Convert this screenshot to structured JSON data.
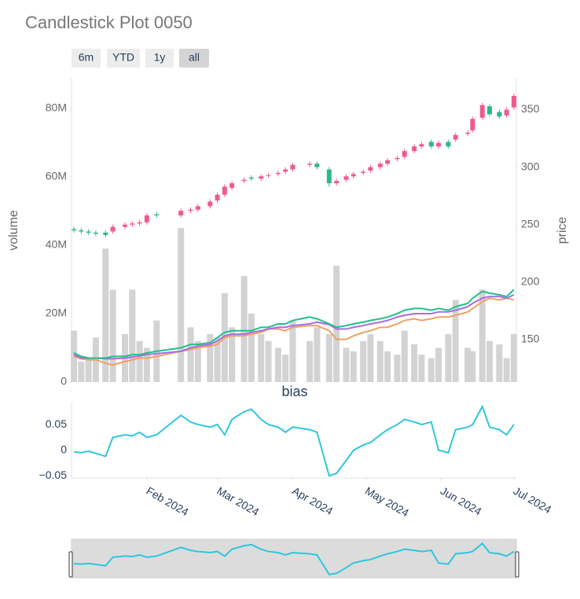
{
  "buttons": [
    "6m",
    "YTD",
    "1y",
    "all"
  ],
  "active_button": 3,
  "chart_data": [
    {
      "type": "candlestick",
      "title": "Candlestick Plot 0050",
      "xlim": [
        "2024-01-01",
        "2024-07-02"
      ],
      "x": [
        "2024-01-02",
        "2024-01-05",
        "2024-01-08",
        "2024-01-11",
        "2024-01-15",
        "2024-01-18",
        "2024-01-23",
        "2024-01-26",
        "2024-01-29",
        "2024-02-01",
        "2024-02-05",
        "2024-02-15",
        "2024-02-19",
        "2024-02-22",
        "2024-02-27",
        "2024-03-01",
        "2024-03-04",
        "2024-03-07",
        "2024-03-12",
        "2024-03-15",
        "2024-03-19",
        "2024-03-22",
        "2024-03-26",
        "2024-03-29",
        "2024-04-01",
        "2024-04-08",
        "2024-04-11",
        "2024-04-16",
        "2024-04-19",
        "2024-04-23",
        "2024-04-26",
        "2024-04-30",
        "2024-05-03",
        "2024-05-07",
        "2024-05-10",
        "2024-05-14",
        "2024-05-17",
        "2024-05-21",
        "2024-05-24",
        "2024-05-28",
        "2024-05-31",
        "2024-06-04",
        "2024-06-07",
        "2024-06-12",
        "2024-06-14",
        "2024-06-18",
        "2024-06-21",
        "2024-06-25",
        "2024-06-28",
        "2024-07-01"
      ],
      "open": [
        246,
        245,
        244,
        243,
        243,
        244,
        248,
        250,
        251,
        252,
        259,
        258,
        262,
        263,
        266,
        271,
        276,
        282,
        288,
        291,
        290,
        293,
        294,
        296,
        298,
        302,
        303,
        298,
        286,
        289,
        292,
        295,
        297,
        300,
        303,
        307,
        309,
        314,
        318,
        322,
        318,
        322,
        324,
        329,
        332,
        343,
        353,
        348,
        345,
        352
      ],
      "high": [
        248,
        247,
        246,
        245,
        245,
        250,
        252,
        253,
        254,
        260,
        261,
        264,
        265,
        268,
        272,
        278,
        285,
        288,
        291,
        293,
        294,
        295,
        297,
        300,
        304,
        305,
        305,
        300,
        290,
        294,
        296,
        298,
        302,
        305,
        308,
        310,
        316,
        320,
        322,
        324,
        323,
        324,
        330,
        332,
        344,
        356,
        355,
        350,
        352,
        364
      ],
      "low": [
        243,
        242,
        241,
        240,
        239,
        242,
        246,
        248,
        249,
        250,
        256,
        256,
        260,
        261,
        264,
        269,
        274,
        280,
        286,
        288,
        288,
        291,
        292,
        294,
        296,
        300,
        298,
        283,
        284,
        287,
        290,
        293,
        295,
        298,
        301,
        305,
        307,
        312,
        316,
        316,
        316,
        316,
        322,
        327,
        330,
        341,
        344,
        342,
        343,
        350
      ],
      "close": [
        245,
        244,
        243,
        242,
        241,
        248,
        250,
        251,
        252,
        258,
        258,
        262,
        263,
        266,
        270,
        276,
        283,
        286,
        289,
        290,
        292,
        293,
        295,
        298,
        302,
        303,
        300,
        286,
        288,
        292,
        294,
        296,
        300,
        303,
        306,
        308,
        314,
        318,
        320,
        318,
        321,
        318,
        328,
        330,
        342,
        354,
        346,
        344,
        350,
        362
      ],
      "increasing_color": "#ef5a8c",
      "decreasing_color": "#2cb88c",
      "ylabel": "volume",
      "y2label": "price",
      "ylim": [
        0,
        88000000
      ],
      "yticks": [
        {
          "value": 0,
          "label": "0"
        },
        {
          "value": 20000000,
          "label": "20M"
        },
        {
          "value": 40000000,
          "label": "40M"
        },
        {
          "value": 60000000,
          "label": "60M"
        },
        {
          "value": 80000000,
          "label": "80M"
        }
      ],
      "y2lim": [
        113,
        375
      ],
      "y2ticks": [
        150,
        200,
        250,
        300,
        350
      ],
      "grid": false,
      "rangeslider": true,
      "series": [
        {
          "type": "bar",
          "axis": "y",
          "color": "#d3d3d3",
          "values": [
            15000000,
            6000000,
            7000000,
            13000000,
            39000000,
            27000000,
            14000000,
            27000000,
            12000000,
            10000000,
            18000000,
            45000000,
            16000000,
            12000000,
            14000000,
            13000000,
            26000000,
            16000000,
            31000000,
            20000000,
            14000000,
            12000000,
            10000000,
            8000000,
            18000000,
            12000000,
            16000000,
            14000000,
            34000000,
            10000000,
            9000000,
            12000000,
            14000000,
            12000000,
            9000000,
            8000000,
            15000000,
            11000000,
            8000000,
            7000000,
            10000000,
            14000000,
            24000000,
            10000000,
            9000000,
            27000000,
            12000000,
            11000000,
            7000000,
            14000000
          ]
        },
        {
          "type": "line",
          "axis": "y",
          "color": "#f0a060",
          "values": [
            7500000,
            6800000,
            6500000,
            6500000,
            5500000,
            5000000,
            6000000,
            6500000,
            7000000,
            7000000,
            7500000,
            9000000,
            9500000,
            10000000,
            10500000,
            11000000,
            13000000,
            13500000,
            13500000,
            14000000,
            14500000,
            15500000,
            15500000,
            15000000,
            16000000,
            16500000,
            16500000,
            15000000,
            12500000,
            12500000,
            13500000,
            14500000,
            15000000,
            16000000,
            16000000,
            17000000,
            18000000,
            18500000,
            18000000,
            18500000,
            19000000,
            19000000,
            19500000,
            20500000,
            21500000,
            23500000,
            24500000,
            24000000,
            24500000,
            24000000
          ]
        },
        {
          "type": "line",
          "axis": "y",
          "color": "#a66ee0",
          "values": [
            8000000,
            7000000,
            7000000,
            7000000,
            6800000,
            6800000,
            7000000,
            7300000,
            7600000,
            8000000,
            8300000,
            9000000,
            10000000,
            10500000,
            11000000,
            12000000,
            13500000,
            14000000,
            14000000,
            14500000,
            15000000,
            15500000,
            16000000,
            16000000,
            16500000,
            17000000,
            17500000,
            16800000,
            15500000,
            15500000,
            16000000,
            16500000,
            17000000,
            17500000,
            18000000,
            19000000,
            19500000,
            20000000,
            20000000,
            20000000,
            20500000,
            20500000,
            21000000,
            22000000,
            23000000,
            24500000,
            25000000,
            25000000,
            24500000,
            25500000
          ]
        },
        {
          "type": "line",
          "axis": "y",
          "color": "#1fc08a",
          "values": [
            8500000,
            7500000,
            7000000,
            7000000,
            7000000,
            7500000,
            7500000,
            8000000,
            8000000,
            8500000,
            9000000,
            10000000,
            11000000,
            11000000,
            11500000,
            13000000,
            14500000,
            15000000,
            15000000,
            15000000,
            16000000,
            16000000,
            17000000,
            17000000,
            18000000,
            19000000,
            18500000,
            17000000,
            16000000,
            16500000,
            17000000,
            17500000,
            18000000,
            18500000,
            19000000,
            20000000,
            21000000,
            21500000,
            21500000,
            21000000,
            21500000,
            21000000,
            22000000,
            23000000,
            24500000,
            26500000,
            26000000,
            25500000,
            25000000,
            27000000
          ]
        }
      ]
    },
    {
      "type": "line",
      "title": "bias",
      "color": "#2ec7dc",
      "ylim": [
        -0.054,
        0.093
      ],
      "yticks": [
        {
          "value": -0.05,
          "label": "−0.05"
        },
        0,
        0.05
      ],
      "xticks": [
        {
          "value": "2024-02-01",
          "label": "Feb 2024"
        },
        {
          "value": "2024-03-01",
          "label": "Mar 2024"
        },
        {
          "value": "2024-04-01",
          "label": "Apr 2024"
        },
        {
          "value": "2024-05-01",
          "label": "May 2024"
        },
        {
          "value": "2024-06-01",
          "label": "Jun 2024"
        },
        {
          "value": "2024-07-01",
          "label": "Jul 2024"
        }
      ],
      "values": [
        -0.003,
        -0.005,
        -0.002,
        -0.006,
        -0.012,
        0.025,
        0.03,
        0.028,
        0.035,
        0.025,
        0.03,
        0.068,
        0.055,
        0.05,
        0.045,
        0.05,
        0.03,
        0.06,
        0.075,
        0.08,
        0.06,
        0.05,
        0.045,
        0.035,
        0.045,
        0.04,
        0.035,
        -0.05,
        -0.045,
        -0.02,
        0.0,
        0.01,
        0.015,
        0.03,
        0.04,
        0.05,
        0.06,
        0.055,
        0.05,
        0.055,
        0.0,
        -0.005,
        0.04,
        0.045,
        0.05,
        0.085,
        0.045,
        0.04,
        0.03,
        0.05
      ]
    }
  ]
}
